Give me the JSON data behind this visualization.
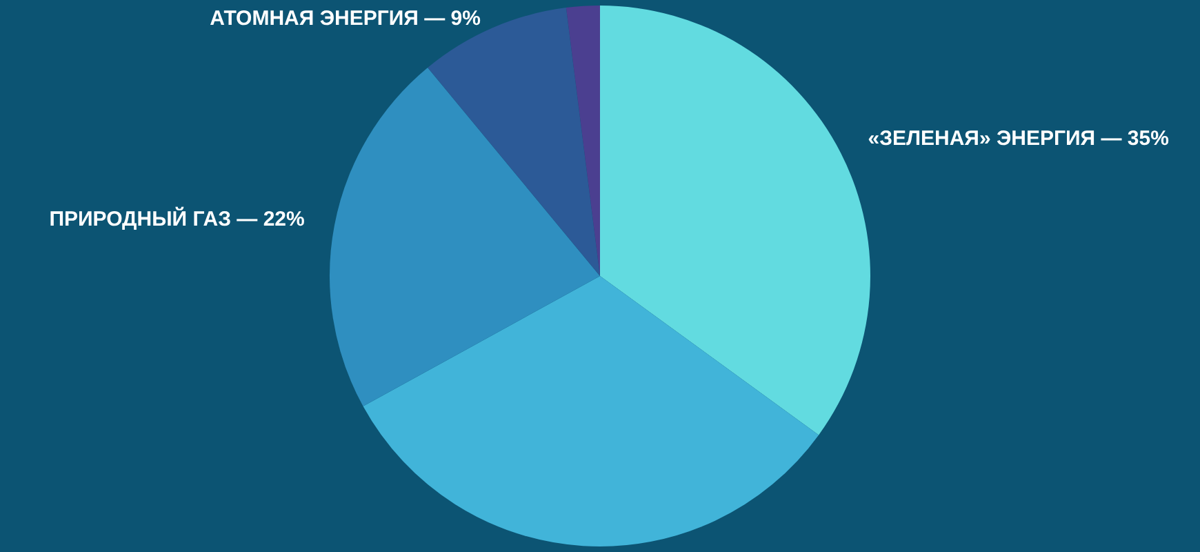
{
  "chart_data": {
    "type": "pie",
    "categories": [
      "«ЗЕЛЕНАЯ» ЭНЕРГИЯ — 35%",
      null,
      "ПРИРОДНЫЙ ГАЗ — 22%",
      "АТОМНАЯ ЭНЕРГИЯ — 9%",
      null
    ],
    "values": [
      35,
      32,
      22,
      9,
      2
    ],
    "colors": [
      "#62dbe0",
      "#41b4d9",
      "#2f8fc0",
      "#2c5a97",
      "#4b3f90"
    ],
    "legend": false
  }
}
